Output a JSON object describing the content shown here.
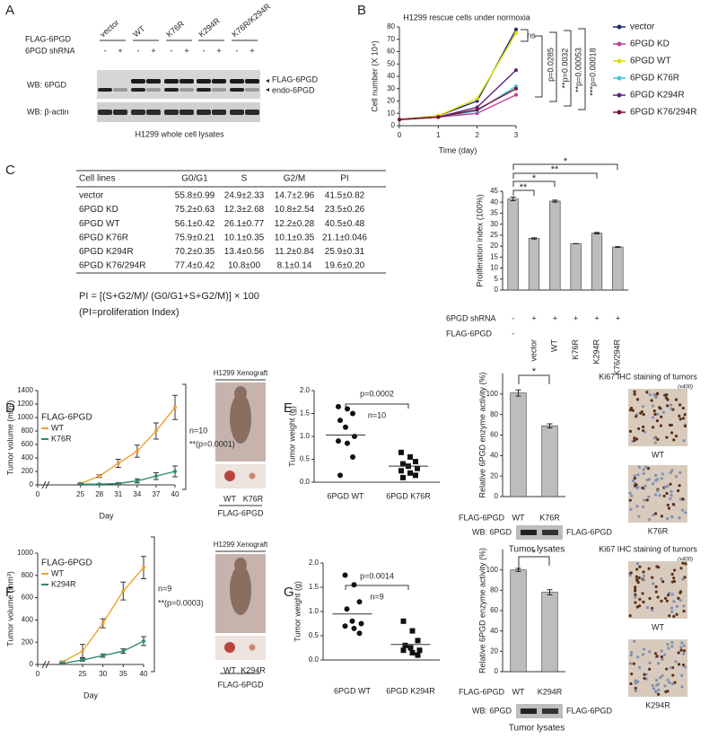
{
  "panel_labels": [
    "A",
    "B",
    "C",
    "D",
    "E",
    "F",
    "G"
  ],
  "blot_a": {
    "rows": [
      "FLAG-6PGD",
      "6PGD shRNA"
    ],
    "groups": [
      "vector",
      "WT",
      "K76R",
      "K294R",
      "K76R/K294R"
    ],
    "shRNA": [
      "-",
      "+",
      "-",
      "+",
      "-",
      "+",
      "-",
      "+",
      "-",
      "+"
    ],
    "blots": [
      "WB: 6PGD",
      "WB: β-actin"
    ],
    "bands": [
      "FLAG-6PGD",
      "endo-6PGD"
    ],
    "caption": "H1299 whole cell lysates"
  },
  "table_c": {
    "header": [
      "Cell lines",
      "G0/G1",
      "S",
      "G2/M",
      "PI"
    ],
    "rows": [
      [
        "vector",
        "55.8±0.99",
        "24.9±2.33",
        "14.7±2.96",
        "41.5±0.82"
      ],
      [
        "6PGD KD",
        "75.2±0.63",
        "12.3±2.68",
        "10.8±2.54",
        "23.5±0.26"
      ],
      [
        "6PGD WT",
        "56.1±0.42",
        "26.1±0.77",
        "12.2±0.28",
        "40.5±0.48"
      ],
      [
        "6PGD K76R",
        "75.9±0.21",
        "10.1±0.35",
        "10.1±0.35",
        "21.1±0.046"
      ],
      [
        "6PGD K294R",
        "70.2±0.35",
        "13.4±0.56",
        "11.2±0.84",
        "25.9±0.31"
      ],
      [
        "6PGD K76/294R",
        "77.4±0.42",
        "10.8±00",
        "8.1±0.14",
        "19.6±0.20"
      ]
    ],
    "formula": "PI = [(S+G2/M)/ (G0/G1+S+G2/M)] × 100",
    "formula_note": "(PI=proliferation Index)"
  },
  "xenograft_d": {
    "title": "H1299 Xenograft",
    "lanes": [
      "WT",
      "K76R"
    ],
    "caption": "FLAG-6PGD"
  },
  "xenograft_f": {
    "title": "H1299 Xenograft",
    "lanes": [
      "WT",
      "K294R"
    ],
    "caption": "FLAG-6PGD"
  },
  "blot_e": {
    "label": "WB: 6PGD",
    "band": "FLAG-6PGD",
    "caption": "Tumor lysates"
  },
  "blot_g": {
    "label": "WB: 6PGD",
    "band": "FLAG-6PGD",
    "caption": "Tumor lysates"
  },
  "ki67_e": {
    "title": "Ki67 IHC staining of tumors",
    "magnification": "(x400)",
    "images": [
      "WT",
      "K76R"
    ]
  },
  "ki67_g": {
    "title": "Ki67 IHC staining of tumors",
    "magnification": "(x400)",
    "images": [
      "WT",
      "K294R"
    ]
  },
  "chart_data": [
    {
      "type": "line",
      "title": "H1299 rescue cells under normoxia",
      "x": [
        0,
        1,
        2,
        3
      ],
      "xlim": [
        0,
        3
      ],
      "xticks": [
        0,
        1,
        2,
        3
      ],
      "ylim": [
        0,
        80
      ],
      "yticks": [
        0,
        10,
        20,
        30,
        40,
        50,
        60,
        70,
        80
      ],
      "x_label": "Time (day)",
      "y_label": "Cell number (X 10⁴)",
      "series": [
        {
          "name": "vector",
          "color": "#1f2a6b",
          "values": [
            5,
            8,
            20,
            78
          ]
        },
        {
          "name": "6PGD KD",
          "color": "#c040a0",
          "values": [
            5,
            7,
            10,
            25
          ]
        },
        {
          "name": "6PGD WT",
          "color": "#e0e000",
          "values": [
            5,
            8,
            22,
            75
          ]
        },
        {
          "name": "6PGD K76R",
          "color": "#40c0e0",
          "values": [
            5,
            7,
            12,
            32
          ]
        },
        {
          "name": "6PGD K294R",
          "color": "#602080",
          "values": [
            5,
            7,
            15,
            45
          ]
        },
        {
          "name": "6PGD K76/294R",
          "color": "#801030",
          "values": [
            5,
            7,
            13,
            30
          ]
        }
      ],
      "annotations": [
        "ns",
        "p=0.0285",
        "**p=0.0032",
        "**p=0.00053",
        "***p=0.00018"
      ]
    },
    {
      "type": "bar",
      "y_label": "Proliferation index (100%)",
      "categories": [
        "-",
        "vector",
        "WT",
        "K76R",
        "K294R",
        "K76/294R"
      ],
      "category_label": "FLAG-6PGD",
      "rows": [
        {
          "name": "6PGD shRNA",
          "values": [
            "-",
            "+",
            "+",
            "+",
            "+",
            "+"
          ]
        }
      ],
      "values": [
        41.5,
        23.5,
        40.5,
        21.1,
        25.9,
        19.6
      ],
      "errors": [
        0.82,
        0.26,
        0.48,
        0.046,
        0.31,
        0.2
      ],
      "ylim": [
        0,
        45
      ],
      "yticks": [
        0,
        5,
        10,
        15,
        20,
        25,
        30,
        35,
        40,
        45
      ],
      "color": "#bdbdbd",
      "significance": [
        "*",
        "**",
        "*",
        "**"
      ]
    },
    {
      "type": "line",
      "legend_title": "FLAG-6PGD",
      "x": [
        25,
        28,
        31,
        34,
        37,
        40
      ],
      "xlim": [
        0,
        40
      ],
      "xticks": [
        0,
        25,
        28,
        31,
        34,
        37,
        40
      ],
      "ylim": [
        0,
        1400
      ],
      "yticks": [
        0,
        200,
        400,
        600,
        800,
        1000,
        1200,
        1400
      ],
      "x_label": "Day",
      "y_label": "Tumor volume (mm³)",
      "series": [
        {
          "name": "WT",
          "color": "#f0a030",
          "values": [
            20,
            130,
            320,
            500,
            800,
            1150
          ],
          "errors": [
            10,
            20,
            60,
            90,
            120,
            180
          ]
        },
        {
          "name": "K76R",
          "color": "#2e8b6e",
          "values": [
            10,
            10,
            20,
            60,
            130,
            200
          ],
          "errors": [
            5,
            5,
            10,
            30,
            50,
            80
          ]
        }
      ],
      "annotations": [
        "n=10",
        "**(p=0.0001)"
      ]
    },
    {
      "type": "strip",
      "y_label": "Tumor weight (g)",
      "categories": [
        "6PGD WT",
        "6PGD K76R"
      ],
      "markers": [
        "circle",
        "square"
      ],
      "values": [
        [
          1.65,
          1.6,
          1.5,
          1.35,
          1.2,
          1.0,
          0.9,
          0.85,
          0.55,
          0.15
        ],
        [
          0.65,
          0.55,
          0.45,
          0.4,
          0.35,
          0.3,
          0.25,
          0.2,
          0.15,
          0.1
        ]
      ],
      "means": [
        1.03,
        0.35
      ],
      "ylim": [
        0,
        2
      ],
      "yticks": [
        {
          "value": 0,
          "label": "0.0"
        },
        {
          "value": 0.5,
          "label": "0.5"
        },
        {
          "value": 1,
          "label": "1.0"
        },
        {
          "value": 1.5,
          "label": "1.5"
        },
        {
          "value": 2,
          "label": "2.0"
        }
      ],
      "annotations": [
        "p=0.0002",
        "n=10"
      ]
    },
    {
      "type": "bar",
      "y_label": "Relative 6PGD enzyme activity (%)",
      "categories": [
        "WT",
        "K76R"
      ],
      "category_label": "FLAG-6PGD",
      "values": [
        101,
        69
      ],
      "errors": [
        3,
        2
      ],
      "ylim": [
        0,
        120
      ],
      "yticks": [
        0,
        20,
        40,
        60,
        80,
        100
      ],
      "color": "#bdbdbd",
      "significance": [
        "*"
      ]
    },
    {
      "type": "line",
      "legend_title": "FLAG-6PGD",
      "x": [
        20,
        25,
        30,
        35,
        40
      ],
      "xlim": [
        0,
        40
      ],
      "xticks": [
        0,
        25,
        30,
        35,
        40
      ],
      "ylim": [
        0,
        1000
      ],
      "yticks": [
        0,
        200,
        400,
        600,
        800,
        1000
      ],
      "x_label": "Day",
      "y_label": "Tumor volume (mm³)",
      "series": [
        {
          "name": "WT",
          "color": "#f0a030",
          "values": [
            20,
            120,
            370,
            660,
            870
          ],
          "errors": [
            10,
            60,
            40,
            80,
            100
          ]
        },
        {
          "name": "K294R",
          "color": "#2e8b6e",
          "values": [
            10,
            40,
            80,
            120,
            210
          ],
          "errors": [
            5,
            10,
            15,
            20,
            40
          ]
        }
      ],
      "annotations": [
        "n=9",
        "**(p=0.0003)"
      ]
    },
    {
      "type": "strip",
      "y_label": "Tumor weight (g)",
      "categories": [
        "6PGD WT",
        "6PGD K294R"
      ],
      "markers": [
        "circle",
        "square"
      ],
      "values": [
        [
          1.75,
          1.55,
          1.2,
          1.05,
          0.8,
          0.75,
          0.7,
          0.65,
          0.55
        ],
        [
          0.8,
          0.6,
          0.4,
          0.3,
          0.25,
          0.2,
          0.2,
          0.15,
          0.1
        ]
      ],
      "means": [
        0.95,
        0.32
      ],
      "ylim": [
        0,
        2
      ],
      "yticks": [
        {
          "value": 0,
          "label": "0.0"
        },
        {
          "value": 0.5,
          "label": "0.5"
        },
        {
          "value": 1,
          "label": "1.0"
        },
        {
          "value": 1.5,
          "label": "1.5"
        },
        {
          "value": 2,
          "label": "2.0"
        }
      ],
      "annotations": [
        "p=0.0014",
        "n=9"
      ]
    },
    {
      "type": "bar",
      "y_label": "Relative 6PGD enzyme activity (%)",
      "categories": [
        "WT",
        "K294R"
      ],
      "category_label": "FLAG-6PGD",
      "values": [
        100,
        78
      ],
      "errors": [
        1.5,
        2.5
      ],
      "ylim": [
        0,
        120
      ],
      "yticks": [
        0,
        20,
        40,
        60,
        80,
        100
      ],
      "color": "#bdbdbd",
      "significance": [
        "*"
      ]
    }
  ]
}
